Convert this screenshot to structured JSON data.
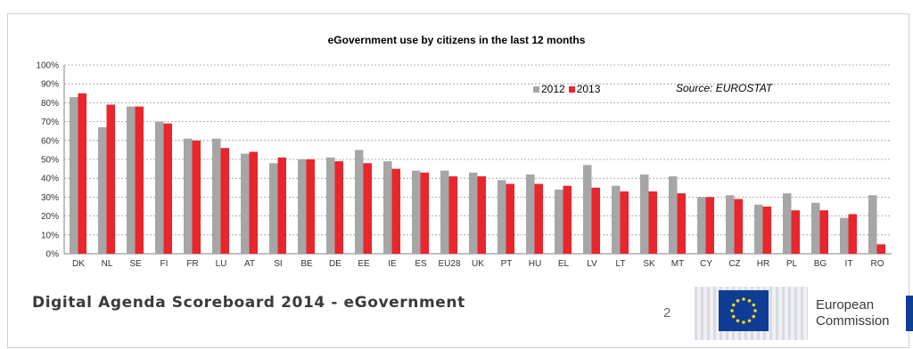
{
  "chart_data": {
    "type": "bar",
    "title": "eGovernment use by citizens in the last 12 months",
    "annotation": "Source: EUROSTAT",
    "categories": [
      "DK",
      "NL",
      "SE",
      "FI",
      "FR",
      "LU",
      "AT",
      "SI",
      "BE",
      "DE",
      "EE",
      "IE",
      "ES",
      "EU28",
      "UK",
      "PT",
      "HU",
      "EL",
      "LV",
      "LT",
      "SK",
      "MT",
      "CY",
      "CZ",
      "HR",
      "PL",
      "BG",
      "IT",
      "RO"
    ],
    "series": [
      {
        "name": "2012",
        "color": "#a6a6a6",
        "values": [
          83,
          67,
          78,
          70,
          61,
          61,
          53,
          48,
          50,
          51,
          55,
          49,
          44,
          44,
          43,
          39,
          42,
          34,
          47,
          36,
          42,
          41,
          30,
          31,
          26,
          32,
          27,
          19,
          31
        ]
      },
      {
        "name": "2013",
        "color": "#e8262c",
        "values": [
          85,
          79,
          78,
          69,
          60,
          56,
          54,
          51,
          50,
          49,
          48,
          45,
          43,
          41,
          41,
          37,
          37,
          36,
          35,
          33,
          33,
          32,
          30,
          29,
          25,
          23,
          23,
          21,
          5
        ]
      }
    ],
    "yticks": [
      "0%",
      "10%",
      "20%",
      "30%",
      "40%",
      "50%",
      "60%",
      "70%",
      "80%",
      "90%",
      "100%"
    ],
    "ylim": [
      0,
      100
    ],
    "grid": true,
    "legend_position": "top-center"
  },
  "footer": {
    "title": "Digital Agenda Scoreboard 2014 - eGovernment",
    "page_number": "2",
    "org_line1": "European",
    "org_line2": "Commission"
  }
}
